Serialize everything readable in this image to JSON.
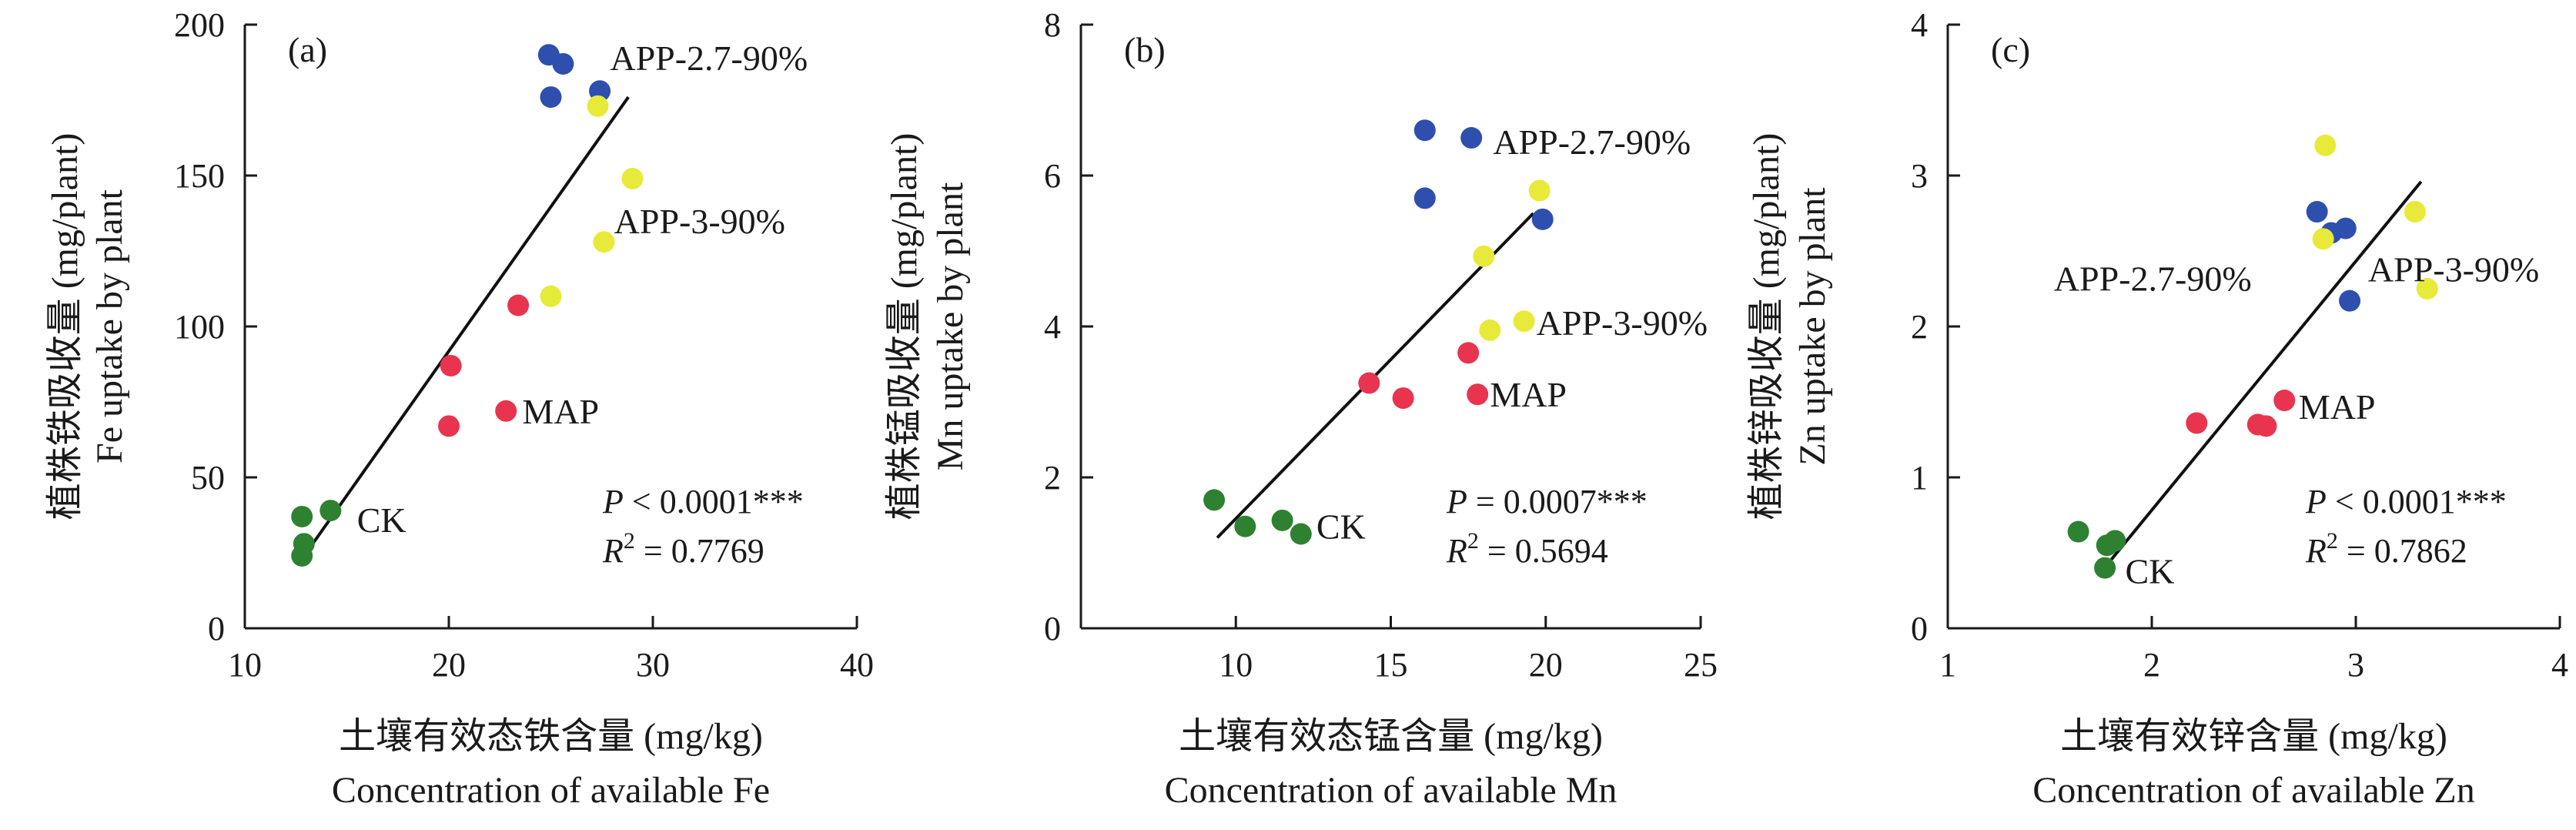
{
  "colors": {
    "MAP": "#e8344e",
    "APP-2.7-90%": "#2e4fae",
    "APP-3-90%": "#e8ea3a",
    "CK": "#2f8132",
    "axis": "#1a1a1a",
    "fit": "#111111"
  },
  "chart_data": [
    {
      "type": "scatter",
      "panel": "(a)",
      "xlabel_cn": "土壤有效态铁含量 (mg/kg)",
      "xlabel_en": "Concentration of available Fe",
      "ylabel_cn": "植株铁吸收量 (mg/plant)",
      "ylabel_en": "Fe uptake by plant",
      "xlim": [
        10,
        40
      ],
      "ylim": [
        0,
        200
      ],
      "xticks": [
        10,
        20,
        30,
        40
      ],
      "yticks": [
        0,
        50,
        100,
        150,
        200
      ],
      "xtick_labels": [
        "10",
        "20",
        "30",
        "40"
      ],
      "ytick_labels": [
        "0",
        "50",
        "100",
        "150",
        "200"
      ],
      "series": [
        {
          "name": "CK",
          "x": [
            12.8,
            12.9,
            12.8,
            14.2
          ],
          "y": [
            37,
            28,
            24,
            39
          ]
        },
        {
          "name": "MAP",
          "x": [
            20.1,
            20.0,
            23.4,
            22.8
          ],
          "y": [
            87,
            67,
            107,
            72
          ]
        },
        {
          "name": "APP-2.7-90%",
          "x": [
            24.9,
            25.6,
            25.0,
            27.4
          ],
          "y": [
            190,
            187,
            176,
            178
          ]
        },
        {
          "name": "APP-3-90%",
          "x": [
            27.3,
            29.0,
            25.0,
            27.6
          ],
          "y": [
            173,
            149,
            110,
            128
          ]
        }
      ],
      "fit": {
        "x": [
          12.7,
          28.8
        ],
        "y": [
          22,
          176
        ]
      },
      "annotations": [
        {
          "text": "APP-2.7-90%",
          "x": 27.9,
          "y": 189
        },
        {
          "text": "APP-3-90%",
          "x": 28.1,
          "y": 135
        },
        {
          "text": "MAP",
          "x": 23.6,
          "y": 72
        },
        {
          "text": "CK",
          "x": 15.5,
          "y": 36
        }
      ],
      "stat_p_label": "P",
      "stat_p_rest": " < 0.0001***",
      "stat_r_label": "R",
      "stat_r_sup": "2",
      "stat_r_rest": " = 0.7769"
    },
    {
      "type": "scatter",
      "panel": "(b)",
      "xlabel_cn": "土壤有效态锰含量 (mg/kg)",
      "xlabel_en": "Concentration of available Mn",
      "ylabel_cn": "植株锰吸收量 (mg/plant)",
      "ylabel_en": "Mn uptake by plant",
      "xlim": [
        5,
        25
      ],
      "ylim": [
        0,
        8
      ],
      "xticks": [
        10,
        15,
        20,
        25
      ],
      "yticks": [
        0,
        2,
        4,
        6,
        8
      ],
      "xtick_labels": [
        "10",
        "15",
        "20",
        "25"
      ],
      "ytick_labels": [
        "0",
        "2",
        "4",
        "6",
        "8"
      ],
      "series": [
        {
          "name": "CK",
          "x": [
            9.3,
            10.3,
            11.5,
            12.1
          ],
          "y": [
            1.7,
            1.35,
            1.43,
            1.25
          ]
        },
        {
          "name": "MAP",
          "x": [
            14.3,
            15.4,
            17.5,
            17.8
          ],
          "y": [
            3.25,
            3.05,
            3.65,
            3.1
          ]
        },
        {
          "name": "APP-2.7-90%",
          "x": [
            16.1,
            17.6,
            16.1,
            19.9
          ],
          "y": [
            6.6,
            6.5,
            5.7,
            5.42
          ]
        },
        {
          "name": "APP-3-90%",
          "x": [
            19.8,
            18.0,
            18.2,
            19.3
          ],
          "y": [
            5.8,
            4.93,
            3.95,
            4.07
          ]
        }
      ],
      "fit": {
        "x": [
          9.4,
          19.6
        ],
        "y": [
          1.2,
          5.5
        ]
      },
      "annotations": [
        {
          "text": "APP-2.7-90%",
          "x": 18.3,
          "y": 6.45
        },
        {
          "text": "APP-3-90%",
          "x": 19.7,
          "y": 4.05
        },
        {
          "text": "MAP",
          "x": 18.2,
          "y": 3.1
        },
        {
          "text": "CK",
          "x": 12.6,
          "y": 1.35
        }
      ],
      "stat_p_label": "P",
      "stat_p_rest": " = 0.0007***",
      "stat_r_label": "R",
      "stat_r_sup": "2",
      "stat_r_rest": " = 0.5694"
    },
    {
      "type": "scatter",
      "panel": "(c)",
      "xlabel_cn": "土壤有效锌含量 (mg/kg)",
      "xlabel_en": "Concentration of available Zn",
      "ylabel_cn": "植株锌吸收量 (mg/plant)",
      "ylabel_en": "Zn uptake by plant",
      "xlim": [
        1,
        4
      ],
      "ylim": [
        0,
        4
      ],
      "xticks": [
        1,
        2,
        3,
        4
      ],
      "yticks": [
        0,
        1,
        2,
        3,
        4
      ],
      "xtick_labels": [
        "1",
        "2",
        "3",
        "4"
      ],
      "ytick_labels": [
        "0",
        "1",
        "2",
        "3",
        "4"
      ],
      "series": [
        {
          "name": "CK",
          "x": [
            1.64,
            1.78,
            1.82,
            1.77
          ],
          "y": [
            0.64,
            0.55,
            0.58,
            0.4
          ]
        },
        {
          "name": "MAP",
          "x": [
            2.22,
            2.52,
            2.56,
            2.65
          ],
          "y": [
            1.36,
            1.35,
            1.34,
            1.51
          ]
        },
        {
          "name": "APP-2.7-90%",
          "x": [
            2.81,
            2.88,
            2.95,
            2.97
          ],
          "y": [
            2.76,
            2.62,
            2.65,
            2.17
          ]
        },
        {
          "name": "APP-3-90%",
          "x": [
            2.85,
            2.84,
            3.29,
            3.35
          ],
          "y": [
            3.2,
            2.58,
            2.76,
            2.25
          ]
        }
      ],
      "fit": {
        "x": [
          1.78,
          3.32
        ],
        "y": [
          0.42,
          2.96
        ]
      },
      "annotations": [
        {
          "text": "APP-2.7-90%",
          "x": 1.52,
          "y": 2.32
        },
        {
          "text": "APP-3-90%",
          "x": 3.06,
          "y": 2.38
        },
        {
          "text": "MAP",
          "x": 2.72,
          "y": 1.47
        },
        {
          "text": "CK",
          "x": 1.87,
          "y": 0.38
        }
      ],
      "stat_p_label": "P",
      "stat_p_rest": " < 0.0001***",
      "stat_r_label": "R",
      "stat_r_sup": "2",
      "stat_r_rest": " = 0.7862"
    }
  ]
}
